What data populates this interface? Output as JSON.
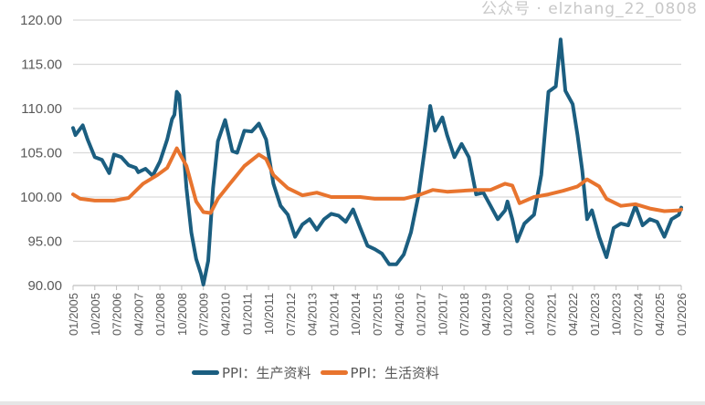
{
  "chart_data": {
    "type": "line",
    "title": "",
    "xlabel": "",
    "ylabel": "",
    "ylim": [
      90,
      120
    ],
    "yticks": [
      "90.00",
      "95.00",
      "100.00",
      "105.00",
      "110.00",
      "115.00",
      "120.00"
    ],
    "xrange": [
      "2005-01",
      "2026-01"
    ],
    "xtick_labels": [
      "01/2005",
      "10/2005",
      "07/2006",
      "04/2007",
      "01/2008",
      "10/2008",
      "07/2009",
      "04/2010",
      "01/2011",
      "10/2011",
      "07/2012",
      "04/2013",
      "01/2014",
      "10/2014",
      "07/2015",
      "04/2016",
      "01/2017",
      "10/2017",
      "07/2018",
      "04/2019",
      "01/2020",
      "10/2020",
      "07/2021",
      "04/2022",
      "01/2023",
      "10/2023",
      "07/2024",
      "04/2025",
      "01/2026"
    ],
    "grid": true,
    "legend_position": "bottom",
    "series": [
      {
        "name": "PPI：生产资料",
        "color": "#1b5e80",
        "points": [
          [
            "2005-01",
            107.8
          ],
          [
            "2005-02",
            107.0
          ],
          [
            "2005-05",
            108.1
          ],
          [
            "2005-07",
            106.5
          ],
          [
            "2005-10",
            104.5
          ],
          [
            "2006-01",
            104.2
          ],
          [
            "2006-04",
            102.7
          ],
          [
            "2006-06",
            104.8
          ],
          [
            "2006-09",
            104.5
          ],
          [
            "2006-12",
            103.6
          ],
          [
            "2007-03",
            103.3
          ],
          [
            "2007-04",
            102.8
          ],
          [
            "2007-07",
            103.2
          ],
          [
            "2007-10",
            102.4
          ],
          [
            "2008-01",
            104.0
          ],
          [
            "2008-04",
            106.5
          ],
          [
            "2008-06",
            108.8
          ],
          [
            "2008-07",
            109.3
          ],
          [
            "2008-08",
            111.9
          ],
          [
            "2008-09",
            111.5
          ],
          [
            "2008-10",
            108.0
          ],
          [
            "2008-12",
            101.0
          ],
          [
            "2009-02",
            96.0
          ],
          [
            "2009-04",
            93.0
          ],
          [
            "2009-06",
            91.3
          ],
          [
            "2009-07",
            90.1
          ],
          [
            "2009-09",
            92.8
          ],
          [
            "2009-11",
            101.0
          ],
          [
            "2010-01",
            106.3
          ],
          [
            "2010-04",
            108.7
          ],
          [
            "2010-07",
            105.2
          ],
          [
            "2010-09",
            105.0
          ],
          [
            "2010-12",
            107.5
          ],
          [
            "2011-03",
            107.4
          ],
          [
            "2011-06",
            108.3
          ],
          [
            "2011-09",
            106.5
          ],
          [
            "2011-12",
            101.5
          ],
          [
            "2012-03",
            99.0
          ],
          [
            "2012-06",
            98.0
          ],
          [
            "2012-09",
            95.5
          ],
          [
            "2012-12",
            96.9
          ],
          [
            "2013-03",
            97.5
          ],
          [
            "2013-06",
            96.3
          ],
          [
            "2013-09",
            97.5
          ],
          [
            "2013-12",
            98.1
          ],
          [
            "2014-03",
            97.9
          ],
          [
            "2014-06",
            97.2
          ],
          [
            "2014-09",
            98.6
          ],
          [
            "2014-12",
            96.5
          ],
          [
            "2015-03",
            94.5
          ],
          [
            "2015-06",
            94.1
          ],
          [
            "2015-09",
            93.6
          ],
          [
            "2015-12",
            92.4
          ],
          [
            "2016-03",
            92.4
          ],
          [
            "2016-06",
            93.5
          ],
          [
            "2016-09",
            96.0
          ],
          [
            "2016-12",
            100.0
          ],
          [
            "2017-03",
            106.0
          ],
          [
            "2017-05",
            110.3
          ],
          [
            "2017-07",
            107.5
          ],
          [
            "2017-10",
            109.0
          ],
          [
            "2017-12",
            107.0
          ],
          [
            "2018-03",
            104.5
          ],
          [
            "2018-06",
            106.0
          ],
          [
            "2018-09",
            104.5
          ],
          [
            "2018-12",
            100.3
          ],
          [
            "2019-03",
            100.5
          ],
          [
            "2019-06",
            99.0
          ],
          [
            "2019-09",
            97.5
          ],
          [
            "2019-12",
            98.5
          ],
          [
            "2020-01",
            99.5
          ],
          [
            "2020-03",
            97.5
          ],
          [
            "2020-05",
            95.0
          ],
          [
            "2020-08",
            97.0
          ],
          [
            "2020-12",
            98.0
          ],
          [
            "2021-03",
            102.5
          ],
          [
            "2021-06",
            111.9
          ],
          [
            "2021-09",
            112.5
          ],
          [
            "2021-11",
            117.8
          ],
          [
            "2022-01",
            112.0
          ],
          [
            "2022-04",
            110.5
          ],
          [
            "2022-06",
            107.0
          ],
          [
            "2022-08",
            103.0
          ],
          [
            "2022-10",
            97.5
          ],
          [
            "2022-12",
            98.5
          ],
          [
            "2023-03",
            95.5
          ],
          [
            "2023-06",
            93.2
          ],
          [
            "2023-09",
            96.5
          ],
          [
            "2023-12",
            97.0
          ],
          [
            "2024-03",
            96.8
          ],
          [
            "2024-06",
            99.0
          ],
          [
            "2024-09",
            96.8
          ],
          [
            "2024-12",
            97.5
          ],
          [
            "2025-03",
            97.2
          ],
          [
            "2025-06",
            95.5
          ],
          [
            "2025-09",
            97.5
          ],
          [
            "2025-12",
            98.0
          ],
          [
            "2026-01",
            98.8
          ]
        ]
      },
      {
        "name": "PPI：生活资料",
        "color": "#e8742e",
        "points": [
          [
            "2005-01",
            100.3
          ],
          [
            "2005-04",
            99.8
          ],
          [
            "2005-10",
            99.6
          ],
          [
            "2006-06",
            99.6
          ],
          [
            "2006-12",
            99.9
          ],
          [
            "2007-06",
            101.5
          ],
          [
            "2007-12",
            102.5
          ],
          [
            "2008-04",
            103.3
          ],
          [
            "2008-08",
            105.5
          ],
          [
            "2008-12",
            103.5
          ],
          [
            "2009-04",
            99.5
          ],
          [
            "2009-07",
            98.3
          ],
          [
            "2009-10",
            98.2
          ],
          [
            "2010-01",
            99.8
          ],
          [
            "2010-06",
            101.5
          ],
          [
            "2010-12",
            103.5
          ],
          [
            "2011-06",
            104.8
          ],
          [
            "2011-09",
            104.3
          ],
          [
            "2011-12",
            102.5
          ],
          [
            "2012-06",
            101.0
          ],
          [
            "2012-12",
            100.2
          ],
          [
            "2013-06",
            100.5
          ],
          [
            "2013-12",
            100.0
          ],
          [
            "2014-06",
            100.0
          ],
          [
            "2014-12",
            100.0
          ],
          [
            "2015-06",
            99.8
          ],
          [
            "2015-12",
            99.8
          ],
          [
            "2016-06",
            99.8
          ],
          [
            "2016-12",
            100.2
          ],
          [
            "2017-06",
            100.8
          ],
          [
            "2017-12",
            100.6
          ],
          [
            "2018-06",
            100.7
          ],
          [
            "2018-12",
            100.8
          ],
          [
            "2019-06",
            100.8
          ],
          [
            "2019-12",
            101.5
          ],
          [
            "2020-03",
            101.3
          ],
          [
            "2020-06",
            99.3
          ],
          [
            "2020-12",
            100.0
          ],
          [
            "2021-06",
            100.3
          ],
          [
            "2021-12",
            100.7
          ],
          [
            "2022-06",
            101.2
          ],
          [
            "2022-10",
            102.0
          ],
          [
            "2023-03",
            101.2
          ],
          [
            "2023-06",
            99.8
          ],
          [
            "2023-12",
            99.0
          ],
          [
            "2024-06",
            99.2
          ],
          [
            "2024-12",
            98.7
          ],
          [
            "2025-06",
            98.4
          ],
          [
            "2025-12",
            98.5
          ],
          [
            "2026-01",
            98.6
          ]
        ]
      }
    ]
  },
  "legend": [
    "PPI：生产资料",
    "PPI：生活资料"
  ],
  "watermark": "公众号 · elzhang_22_0808"
}
